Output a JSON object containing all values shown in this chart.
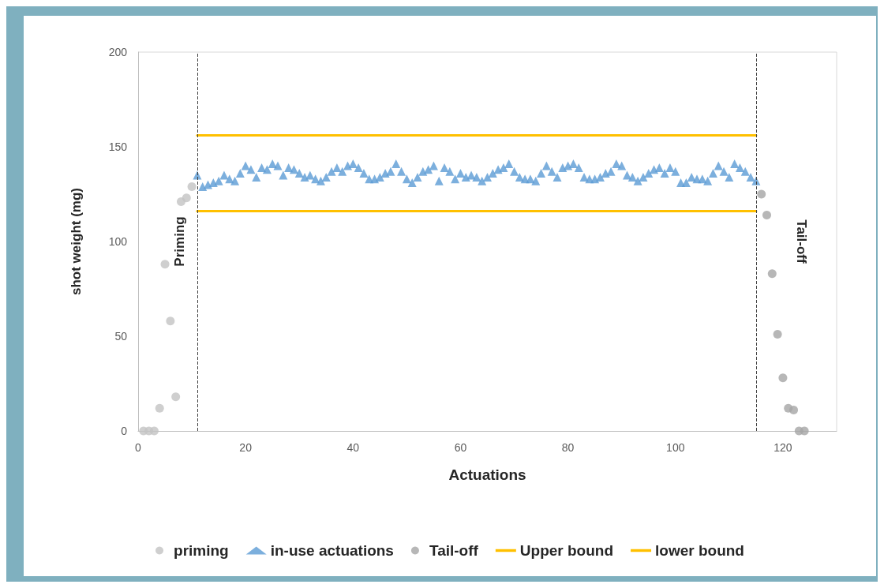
{
  "chart_data": {
    "type": "scatter",
    "xlabel": "Actuations",
    "ylabel": "shot weight (mg)",
    "xlim": [
      0,
      130
    ],
    "xticks": [
      0,
      20,
      40,
      60,
      80,
      100,
      120
    ],
    "ylim": [
      0,
      200
    ],
    "yticks": [
      0,
      50,
      100,
      150,
      200
    ],
    "grid": false,
    "legend": "bottom",
    "series": [
      {
        "name": "priming",
        "marker": "circle",
        "color": "#c3c3c3",
        "x": [
          1,
          2,
          3,
          4,
          5,
          6,
          7,
          8,
          9,
          10
        ],
        "values": [
          0,
          0,
          0,
          12,
          88,
          58,
          18,
          121,
          123,
          129
        ]
      },
      {
        "name": "in-use actuations",
        "marker": "triangle",
        "color": "#5b9bd5",
        "x": [
          11,
          12,
          13,
          14,
          15,
          16,
          17,
          18,
          19,
          20,
          21,
          22,
          23,
          24,
          25,
          26,
          27,
          28,
          29,
          30,
          31,
          32,
          33,
          34,
          35,
          36,
          37,
          38,
          39,
          40,
          41,
          42,
          43,
          44,
          45,
          46,
          47,
          48,
          49,
          50,
          51,
          52,
          53,
          54,
          55,
          56,
          57,
          58,
          59,
          60,
          61,
          62,
          63,
          64,
          65,
          66,
          67,
          68,
          69,
          70,
          71,
          72,
          73,
          74,
          75,
          76,
          77,
          78,
          79,
          80,
          81,
          82,
          83,
          84,
          85,
          86,
          87,
          88,
          89,
          90,
          91,
          92,
          93,
          94,
          95,
          96,
          97,
          98,
          99,
          100,
          101,
          102,
          103,
          104,
          105,
          106,
          107,
          108,
          109,
          110,
          111,
          112,
          113,
          114,
          115
        ],
        "values": [
          135,
          129,
          130,
          131,
          132,
          135,
          133,
          132,
          136,
          140,
          138,
          134,
          139,
          138,
          141,
          140,
          135,
          139,
          138,
          136,
          134,
          135,
          133,
          132,
          134,
          137,
          139,
          137,
          140,
          141,
          139,
          136,
          133,
          133,
          134,
          136,
          137,
          141,
          137,
          133,
          131,
          134,
          137,
          138,
          140,
          132,
          139,
          137,
          133,
          136,
          134,
          135,
          134,
          132,
          134,
          136,
          138,
          139,
          141,
          137,
          134,
          133,
          133,
          132,
          136,
          140,
          137,
          134,
          139,
          140,
          141,
          139,
          134,
          133,
          133,
          134,
          136,
          137,
          141,
          140,
          135,
          134,
          132,
          134,
          136,
          138,
          139,
          136,
          139,
          137,
          131,
          131,
          134,
          133,
          133,
          132,
          136,
          140,
          137,
          134,
          141,
          139,
          137,
          134,
          132
        ]
      },
      {
        "name": "Tail-off",
        "marker": "circle",
        "color": "#a5a5a5",
        "x": [
          116,
          117,
          118,
          119,
          120,
          121,
          122,
          123,
          124
        ],
        "values": [
          125,
          114,
          83,
          51,
          28,
          12,
          11,
          0,
          0
        ]
      },
      {
        "name": "Upper bound",
        "type": "line",
        "marker": "none",
        "color": "#ffc000",
        "x": [
          11,
          115
        ],
        "values": [
          156,
          156
        ]
      },
      {
        "name": "lower bound",
        "type": "line",
        "marker": "none",
        "color": "#ffc000",
        "x": [
          11,
          115
        ],
        "values": [
          116,
          116
        ]
      }
    ],
    "ref_lines": [
      {
        "axis": "x",
        "value": 11,
        "label": "Priming",
        "color": "#404040",
        "line_style": "dashed"
      },
      {
        "axis": "x",
        "value": 115,
        "label": "Tail-off",
        "color": "#404040",
        "line_style": "dashed"
      }
    ]
  }
}
